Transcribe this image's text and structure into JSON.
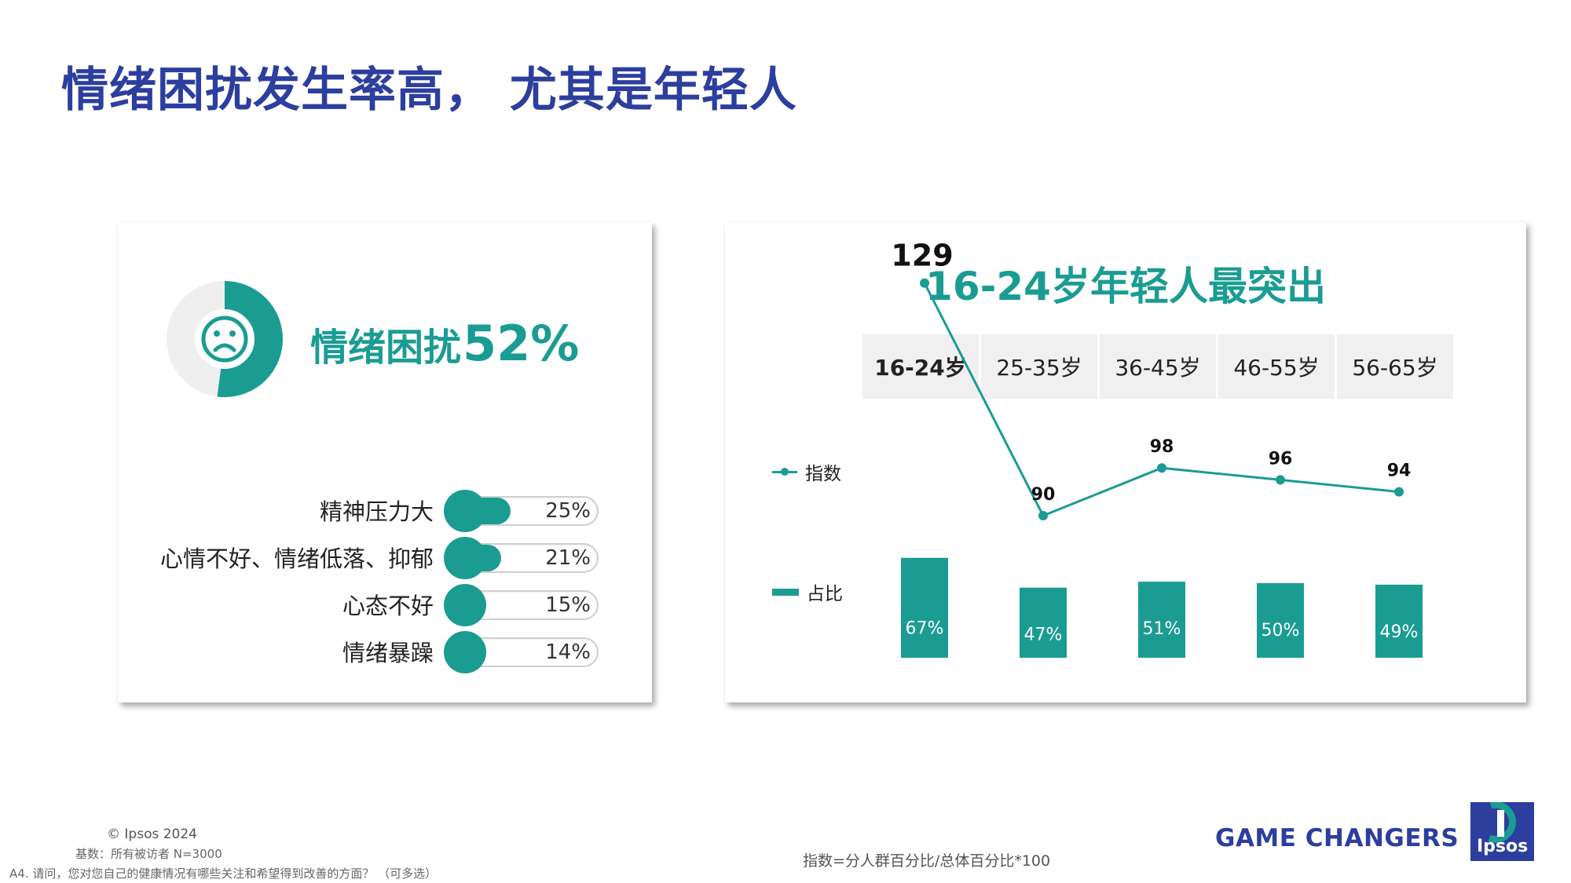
{
  "title": "情绪困扰发生率高， 尤其是年轻人",
  "colors": {
    "brand_blue": "#2c3e9e",
    "teal": "#1a9c93",
    "track": "#efefef"
  },
  "left_card": {
    "icon": "sad-face-icon",
    "headline_label": "情绪困扰",
    "headline_value": "52%",
    "headline_fraction": 0.52,
    "items": [
      {
        "label": "精神压力大",
        "value": "25%",
        "fraction": 0.25
      },
      {
        "label": "心情不好、情绪低落、抑郁",
        "value": "21%",
        "fraction": 0.21
      },
      {
        "label": "心态不好",
        "value": "15%",
        "fraction": 0.15
      },
      {
        "label": "情绪暴躁",
        "value": "14%",
        "fraction": 0.14
      }
    ]
  },
  "right_card": {
    "title": "16-24岁年轻人最突出",
    "tabs": [
      "16-24岁",
      "25-35岁",
      "36-45岁",
      "46-55岁",
      "56-65岁"
    ],
    "active_tab": 0,
    "legend": {
      "line": "指数",
      "bar": "占比"
    }
  },
  "chart_data": {
    "type": "bar",
    "categories": [
      "16-24岁",
      "25-35岁",
      "36-45岁",
      "46-55岁",
      "56-65岁"
    ],
    "series": [
      {
        "name": "占比",
        "type": "bar",
        "values": [
          67,
          47,
          51,
          50,
          49
        ],
        "labels": [
          "67%",
          "47%",
          "51%",
          "50%",
          "49%"
        ]
      },
      {
        "name": "指数",
        "type": "line",
        "values": [
          129,
          90,
          98,
          96,
          94
        ],
        "labels": [
          "129",
          "90",
          "98",
          "96",
          "94"
        ]
      }
    ],
    "highlight_index": 0
  },
  "footer": {
    "copyright": "© Ipsos 2024",
    "base": "基数：所有被访者  N=3000",
    "question": "A4. 请问，您对您自己的健康情况有哪些关注和希望得到改善的方面？ （可多选）",
    "index_note": "指数=分人群百分比/总体百分比*100",
    "tagline": "GAME CHANGERS",
    "logo_text": "Ipsos"
  }
}
